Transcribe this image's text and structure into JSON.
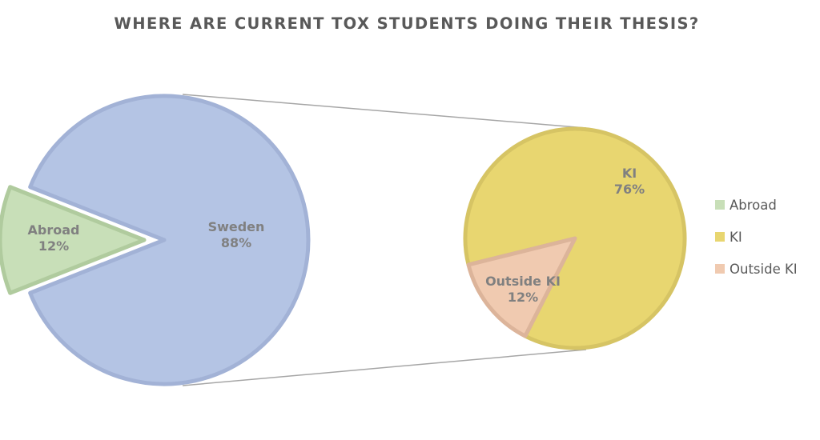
{
  "chart_data": {
    "type": "pie",
    "subtype": "pie-of-pie",
    "title": "WHERE ARE CURRENT TOX STUDENTS DOING THEIR THESIS?",
    "primary_pie": {
      "slices": [
        {
          "label": "Sweden",
          "value": 88,
          "value_label": "88%",
          "color": "#b4c4e4",
          "border": "#a2b2d6",
          "text_color": "#808080"
        },
        {
          "label": "Abroad",
          "value": 12,
          "value_label": "12%",
          "color": "#c8dfb8",
          "border": "#b0cb9e",
          "text_color": "#808080"
        }
      ]
    },
    "secondary_pie": {
      "breakdown_of": "Sweden",
      "slices": [
        {
          "label": "KI",
          "value": 76,
          "value_label": "76%",
          "color": "#e8d670",
          "border": "#d6c464",
          "text_color": "#808080"
        },
        {
          "label": "Outside KI",
          "value": 12,
          "value_label": "12%",
          "color": "#f0cab0",
          "border": "#dcb49a",
          "text_color": "#808080"
        }
      ]
    },
    "legend": {
      "position": "right",
      "entries": [
        {
          "label": "Abroad",
          "color": "#c8dfb8"
        },
        {
          "label": "KI",
          "color": "#e8d670"
        },
        {
          "label": "Outside KI",
          "color": "#f0cab0"
        }
      ]
    },
    "connector_color": "#a6a6a6"
  }
}
